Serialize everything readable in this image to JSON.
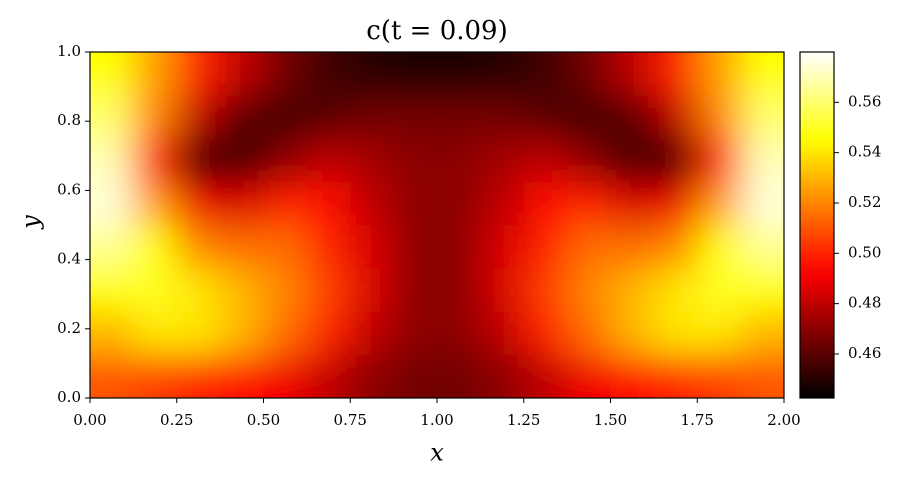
{
  "chart_data": {
    "type": "heatmap",
    "title": "c(t = 0.09)",
    "xlabel": "x",
    "ylabel": "y",
    "colormap": "hot",
    "x": [
      0.0625,
      0.1875,
      0.3125,
      0.4375,
      0.5625,
      0.6875,
      0.8125,
      0.9375,
      1.0625,
      1.1875,
      1.3125,
      1.4375,
      1.5625,
      1.6875,
      1.8125,
      1.9375
    ],
    "y": [
      0.0625,
      0.1875,
      0.3125,
      0.4375,
      0.5625,
      0.6875,
      0.8125,
      0.9375
    ],
    "z": [
      [
        0.51,
        0.505,
        0.5,
        0.495,
        0.49,
        0.48,
        0.47,
        0.465,
        0.465,
        0.47,
        0.48,
        0.49,
        0.495,
        0.5,
        0.505,
        0.51
      ],
      [
        0.53,
        0.54,
        0.54,
        0.53,
        0.515,
        0.5,
        0.48,
        0.47,
        0.47,
        0.48,
        0.5,
        0.515,
        0.53,
        0.54,
        0.54,
        0.53
      ],
      [
        0.545,
        0.55,
        0.54,
        0.53,
        0.52,
        0.505,
        0.485,
        0.47,
        0.47,
        0.485,
        0.505,
        0.52,
        0.53,
        0.54,
        0.55,
        0.545
      ],
      [
        0.565,
        0.545,
        0.52,
        0.515,
        0.515,
        0.5,
        0.485,
        0.47,
        0.47,
        0.485,
        0.5,
        0.515,
        0.515,
        0.52,
        0.545,
        0.565
      ],
      [
        0.575,
        0.525,
        0.49,
        0.485,
        0.5,
        0.495,
        0.48,
        0.47,
        0.47,
        0.48,
        0.495,
        0.5,
        0.485,
        0.49,
        0.525,
        0.575
      ],
      [
        0.57,
        0.5,
        0.455,
        0.455,
        0.47,
        0.48,
        0.475,
        0.47,
        0.47,
        0.475,
        0.48,
        0.47,
        0.455,
        0.455,
        0.5,
        0.57
      ],
      [
        0.56,
        0.52,
        0.48,
        0.46,
        0.455,
        0.46,
        0.465,
        0.465,
        0.465,
        0.465,
        0.46,
        0.455,
        0.46,
        0.48,
        0.52,
        0.56
      ],
      [
        0.545,
        0.525,
        0.5,
        0.48,
        0.465,
        0.455,
        0.45,
        0.448,
        0.448,
        0.45,
        0.455,
        0.465,
        0.48,
        0.5,
        0.525,
        0.545
      ]
    ],
    "xlim": [
      0,
      2
    ],
    "ylim": [
      0,
      1
    ],
    "clim": [
      0.4425,
      0.58
    ],
    "xticks": [
      {
        "value": 0,
        "label": "0.00"
      },
      {
        "value": 0.25,
        "label": "0.25"
      },
      {
        "value": 0.5,
        "label": "0.50"
      },
      {
        "value": 0.75,
        "label": "0.75"
      },
      {
        "value": 1,
        "label": "1.00"
      },
      {
        "value": 1.25,
        "label": "1.25"
      },
      {
        "value": 1.5,
        "label": "1.50"
      },
      {
        "value": 1.75,
        "label": "1.75"
      },
      {
        "value": 2,
        "label": "2.00"
      }
    ],
    "yticks": [
      {
        "value": 0,
        "label": "0.0"
      },
      {
        "value": 0.2,
        "label": "0.2"
      },
      {
        "value": 0.4,
        "label": "0.4"
      },
      {
        "value": 0.6,
        "label": "0.6"
      },
      {
        "value": 0.8,
        "label": "0.8"
      },
      {
        "value": 1,
        "label": "1.0"
      }
    ],
    "cticks": [
      {
        "value": 0.46,
        "label": "0.46"
      },
      {
        "value": 0.48,
        "label": "0.48"
      },
      {
        "value": 0.5,
        "label": "0.50"
      },
      {
        "value": 0.52,
        "label": "0.52"
      },
      {
        "value": 0.54,
        "label": "0.54"
      },
      {
        "value": 0.56,
        "label": "0.56"
      }
    ]
  }
}
